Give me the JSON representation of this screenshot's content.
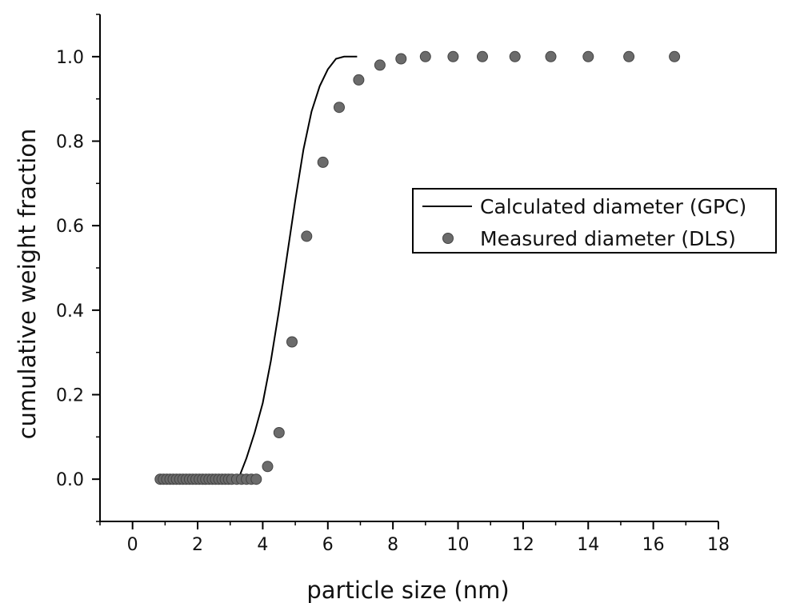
{
  "chart_data": {
    "type": "scatter",
    "title": "",
    "xlabel": "particle size (nm)",
    "ylabel": "cumulative weight fraction",
    "xlim": [
      -1,
      18
    ],
    "ylim": [
      -0.1,
      1.1
    ],
    "x_ticks": [
      0,
      2,
      4,
      6,
      8,
      10,
      12,
      14,
      16,
      18
    ],
    "y_ticks": [
      0.0,
      0.2,
      0.4,
      0.6,
      0.8,
      1.0
    ],
    "x_tick_labels": [
      "0",
      "2",
      "4",
      "6",
      "8",
      "10",
      "12",
      "14",
      "16",
      "18"
    ],
    "y_tick_labels": [
      "0.0",
      "0.2",
      "0.4",
      "0.6",
      "0.8",
      "1.0"
    ],
    "grid": false,
    "legend_position": "center-right",
    "series": [
      {
        "name": "Calculated diameter (GPC)",
        "style": "line",
        "color": "#000000",
        "x": [
          3.25,
          3.5,
          3.75,
          4.0,
          4.25,
          4.5,
          4.75,
          5.0,
          5.25,
          5.5,
          5.75,
          6.0,
          6.25,
          6.5,
          6.75,
          6.9
        ],
        "y": [
          0.0,
          0.05,
          0.11,
          0.18,
          0.28,
          0.4,
          0.53,
          0.66,
          0.78,
          0.87,
          0.93,
          0.97,
          0.995,
          1.0,
          1.0,
          1.0
        ]
      },
      {
        "name": "Measured diameter (DLS)",
        "style": "marker",
        "color": "#6b6b6b",
        "x": [
          0.85,
          0.95,
          1.05,
          1.15,
          1.25,
          1.35,
          1.45,
          1.55,
          1.65,
          1.75,
          1.85,
          1.95,
          2.05,
          2.15,
          2.25,
          2.35,
          2.45,
          2.55,
          2.65,
          2.75,
          2.85,
          2.95,
          3.05,
          3.2,
          3.35,
          3.5,
          3.65,
          3.8,
          4.15,
          4.5,
          4.9,
          5.35,
          5.85,
          6.35,
          6.95,
          7.6,
          8.25,
          9.0,
          9.85,
          10.75,
          11.75,
          12.85,
          14.0,
          15.25,
          16.65
        ],
        "y": [
          0.0,
          0.0,
          0.0,
          0.0,
          0.0,
          0.0,
          0.0,
          0.0,
          0.0,
          0.0,
          0.0,
          0.0,
          0.0,
          0.0,
          0.0,
          0.0,
          0.0,
          0.0,
          0.0,
          0.0,
          0.0,
          0.0,
          0.0,
          0.0,
          0.0,
          0.0,
          0.0,
          0.0,
          0.03,
          0.11,
          0.325,
          0.575,
          0.75,
          0.88,
          0.945,
          0.98,
          0.995,
          1.0,
          1.0,
          1.0,
          1.0,
          1.0,
          1.0,
          1.0,
          1.0
        ]
      }
    ]
  }
}
